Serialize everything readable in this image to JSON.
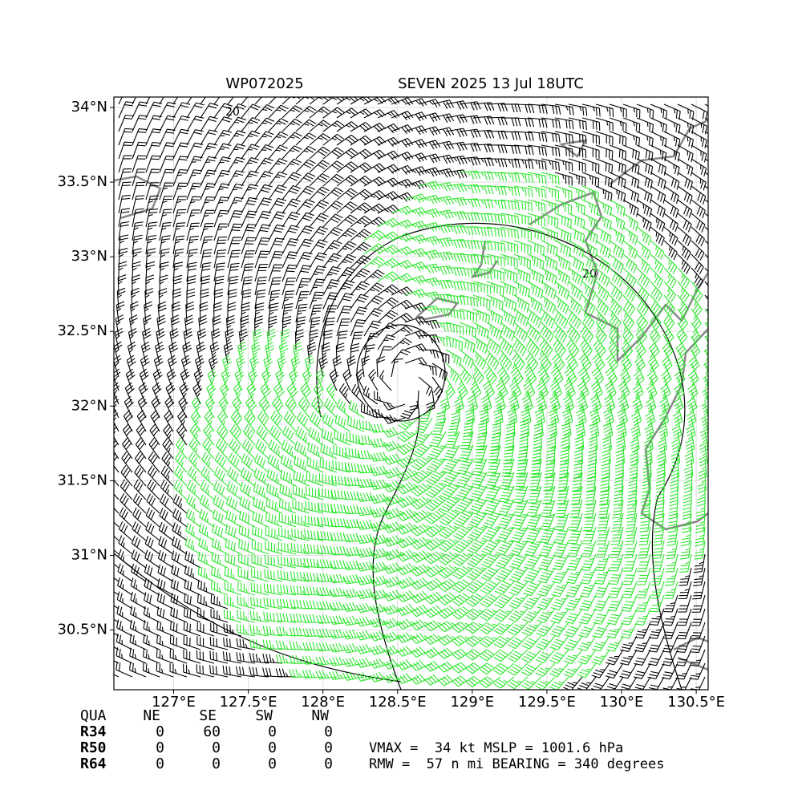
{
  "map": {
    "title_left": "WP072025",
    "title_right": "SEVEN 2025 13 Jul 18UTC",
    "xlim": [
      126.6,
      130.58
    ],
    "ylim": [
      30.1,
      34.07
    ],
    "xticks": [
      {
        "value": 127,
        "label": "127°E"
      },
      {
        "value": 127.5,
        "label": "127.5°E"
      },
      {
        "value": 128,
        "label": "128°E"
      },
      {
        "value": 128.5,
        "label": "128.5°E"
      },
      {
        "value": 129,
        "label": "129°E"
      },
      {
        "value": 129.5,
        "label": "129.5°E"
      },
      {
        "value": 130,
        "label": "130°E"
      },
      {
        "value": 130.5,
        "label": "130.5°E"
      }
    ],
    "yticks": [
      {
        "value": 30.5,
        "label": "30.5°N"
      },
      {
        "value": 31,
        "label": "31°N"
      },
      {
        "value": 31.5,
        "label": "31.5°N"
      },
      {
        "value": 32,
        "label": "32°N"
      },
      {
        "value": 32.5,
        "label": "32.5°N"
      },
      {
        "value": 33,
        "label": "33°N"
      },
      {
        "value": 33.5,
        "label": "33.5°N"
      },
      {
        "value": 34,
        "label": "34°N"
      }
    ],
    "contour_labels": [
      "20",
      "20"
    ]
  },
  "table": {
    "header": [
      "QUA",
      "NE",
      "SE",
      "SW",
      "NW"
    ],
    "rows": [
      [
        "R34",
        0,
        60,
        0,
        0
      ],
      [
        "R50",
        0,
        0,
        0,
        0
      ],
      [
        "R64",
        0,
        0,
        0,
        0
      ]
    ]
  },
  "stats": [
    "VMAX =  34 kt MSLP = 1001.6 hPa",
    "RMW =  57 n mi BEARING = 340 degrees"
  ]
}
